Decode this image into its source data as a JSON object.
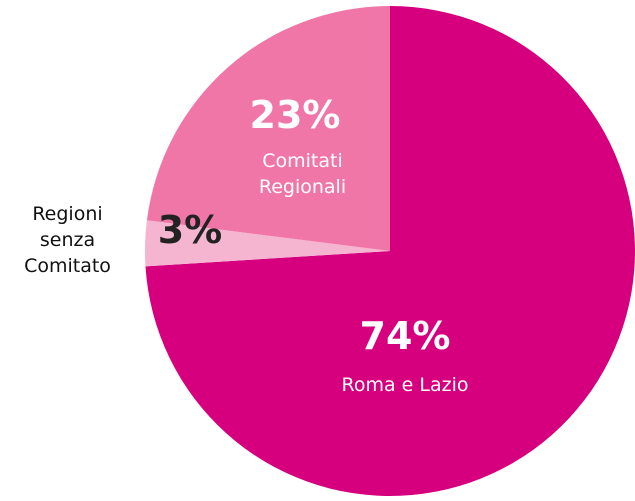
{
  "chart_data": {
    "type": "pie",
    "categories": [
      "Roma e Lazio",
      "Regioni senza Comitato",
      "Comitati Regionali"
    ],
    "values": [
      74,
      3,
      23
    ],
    "value_labels": [
      "74%",
      "3%",
      "23%"
    ],
    "colors": [
      "#d6007e",
      "#f5b5d0",
      "#f176a8"
    ]
  }
}
